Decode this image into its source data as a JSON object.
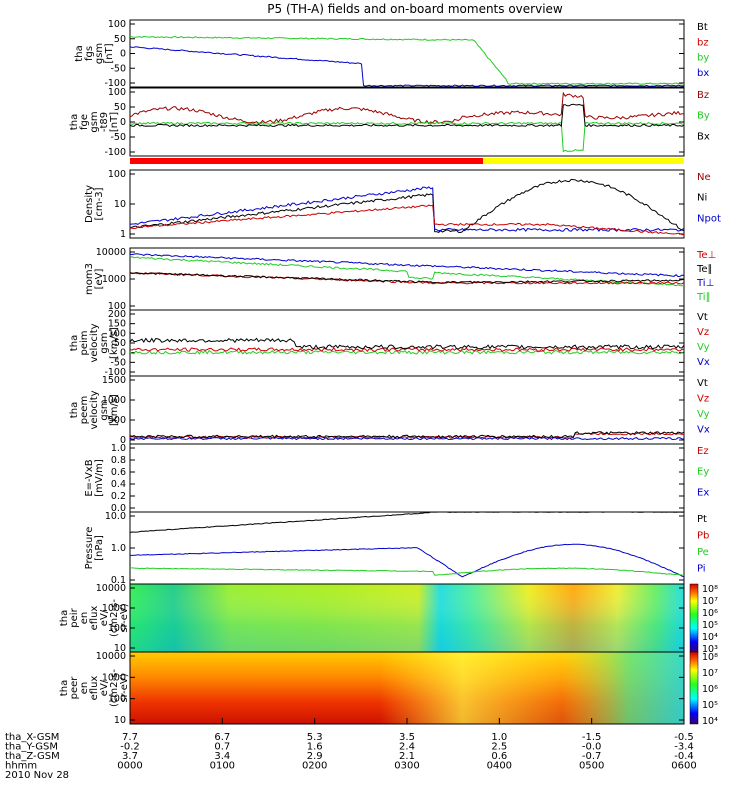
{
  "chart_data": {
    "type": "line",
    "title": "P5 (TH-A) fields and on-board moments overview",
    "date": "2010 Nov 28",
    "colorbar_top": "#ff0000",
    "colorbar_bottom": "#ffff00",
    "panels": [
      {
        "id": "p1",
        "ylabel": [
          "tha",
          "fgs",
          "gsm",
          "[nT]"
        ],
        "ylim": [
          -100,
          100
        ],
        "yticks": [
          "100",
          "50",
          "0",
          "-50",
          "-100"
        ],
        "tickvals": [
          100,
          50,
          0,
          -50,
          -100
        ],
        "legend": [
          {
            "name": "Bt",
            "color": "#000000"
          },
          {
            "name": "bz",
            "color": "#cc0000"
          },
          {
            "name": "by",
            "color": "#22cc22"
          },
          {
            "name": "bx",
            "color": "#0000cc"
          }
        ]
      },
      {
        "id": "p2",
        "ylabel": [
          "tha",
          "fge",
          "gsm",
          "-t89",
          "[nT]"
        ],
        "ylim": [
          -120,
          120
        ],
        "yticks": [
          "100",
          "50",
          "0",
          "-50",
          "-100"
        ],
        "tickvals": [
          100,
          50,
          0,
          -50,
          -100
        ],
        "legend": [
          {
            "name": "Bz",
            "color": "#990000"
          },
          {
            "name": "By",
            "color": "#22cc22"
          },
          {
            "name": "Bx",
            "color": "#000000"
          }
        ]
      },
      {
        "id": "p3",
        "ylabel": [
          "Density",
          "[cm-3]"
        ],
        "yticks": [
          "100",
          "10",
          "1"
        ],
        "legend": [
          {
            "name": "Ne",
            "color": "#990000"
          },
          {
            "name": "Ni",
            "color": "#000000"
          },
          {
            "name": "Npot",
            "color": "#0000cc"
          }
        ]
      },
      {
        "id": "p4",
        "ylabel": [
          "mom3",
          "[eV]"
        ],
        "yticks": [
          "10000",
          "1000",
          "100"
        ],
        "legend": [
          {
            "name": "Te⊥",
            "color": "#cc0000"
          },
          {
            "name": "Te∥",
            "color": "#000000"
          },
          {
            "name": "Ti⊥",
            "color": "#0000cc"
          },
          {
            "name": "Ti∥",
            "color": "#22cc22"
          }
        ]
      },
      {
        "id": "p5",
        "ylabel": [
          "tha",
          "peim",
          "velocity",
          "gsm",
          "[km/s]"
        ],
        "yticks": [
          "200",
          "150",
          "100",
          "50",
          "0",
          "-50",
          "-100"
        ],
        "legend": [
          {
            "name": "Vt",
            "color": "#000000"
          },
          {
            "name": "Vz",
            "color": "#cc0000"
          },
          {
            "name": "Vy",
            "color": "#22cc22"
          },
          {
            "name": "Vx",
            "color": "#0000cc"
          }
        ]
      },
      {
        "id": "p6",
        "ylabel": [
          "tha",
          "peem",
          "velocity",
          "gsm",
          "[km/s]"
        ],
        "yticks": [
          "1500",
          "1000",
          "500",
          "0"
        ],
        "legend": [
          {
            "name": "Vt",
            "color": "#000000"
          },
          {
            "name": "Vz",
            "color": "#cc0000"
          },
          {
            "name": "Vy",
            "color": "#22cc22"
          },
          {
            "name": "Vx",
            "color": "#0000cc"
          }
        ]
      },
      {
        "id": "p7",
        "ylabel": [
          "E=-VxB",
          "[mV/m]"
        ],
        "yticks": [
          "1.0",
          "0.8",
          "0.6",
          "0.4",
          "0.2",
          "0.0"
        ],
        "legend": [
          {
            "name": "Ez",
            "color": "#cc0000"
          },
          {
            "name": "Ey",
            "color": "#22cc22"
          },
          {
            "name": "Ex",
            "color": "#0000cc"
          }
        ]
      },
      {
        "id": "p8",
        "ylabel": [
          "Pressure",
          "[nPa]"
        ],
        "yticks": [
          "10.0",
          "1.0",
          "0.1"
        ],
        "legend": [
          {
            "name": "Pt",
            "color": "#000000"
          },
          {
            "name": "Pb",
            "color": "#cc0000"
          },
          {
            "name": "Pe",
            "color": "#22cc22"
          },
          {
            "name": "Pi",
            "color": "#0000cc"
          }
        ]
      },
      {
        "id": "p9",
        "ylabel": [
          "tha",
          "peir",
          "en",
          "eflux",
          "eV/",
          "(cm2-s-",
          "sr-eV)"
        ],
        "yticks": [
          "10000",
          "1000",
          "100",
          "10"
        ],
        "cbar": [
          "10⁸",
          "10⁷",
          "10⁶",
          "10⁵",
          "10⁴",
          "10³"
        ]
      },
      {
        "id": "p10",
        "ylabel": [
          "tha",
          "peer",
          "en",
          "eflux",
          "eV/",
          "(cm2-s-",
          "sr-eV)"
        ],
        "yticks": [
          "10000",
          "1000",
          "100",
          "10"
        ],
        "cbar": [
          "10⁸",
          "10⁷",
          "10⁶",
          "10⁵",
          "10⁴"
        ]
      }
    ],
    "ephemeris": {
      "labels": [
        "tha_X-GSM",
        "tha_Y-GSM",
        "tha_Z-GSM",
        "hhmm",
        "2010 Nov 28"
      ],
      "columns": [
        {
          "x": "7.7",
          "y": "-0.2",
          "z": "3.7",
          "t": "0000"
        },
        {
          "x": "6.7",
          "y": "0.7",
          "z": "3.4",
          "t": "0100"
        },
        {
          "x": "5.3",
          "y": "1.6",
          "z": "2.9",
          "t": "0200"
        },
        {
          "x": "3.5",
          "y": "2.4",
          "z": "2.1",
          "t": "0300"
        },
        {
          "x": "1.0",
          "y": "2.5",
          "z": "0.6",
          "t": "0400"
        },
        {
          "x": "-1.5",
          "y": "-0.0",
          "z": "-0.7",
          "t": "0500"
        },
        {
          "x": "-0.5",
          "y": "-3.4",
          "z": "-0.4",
          "t": "0600"
        }
      ]
    }
  }
}
